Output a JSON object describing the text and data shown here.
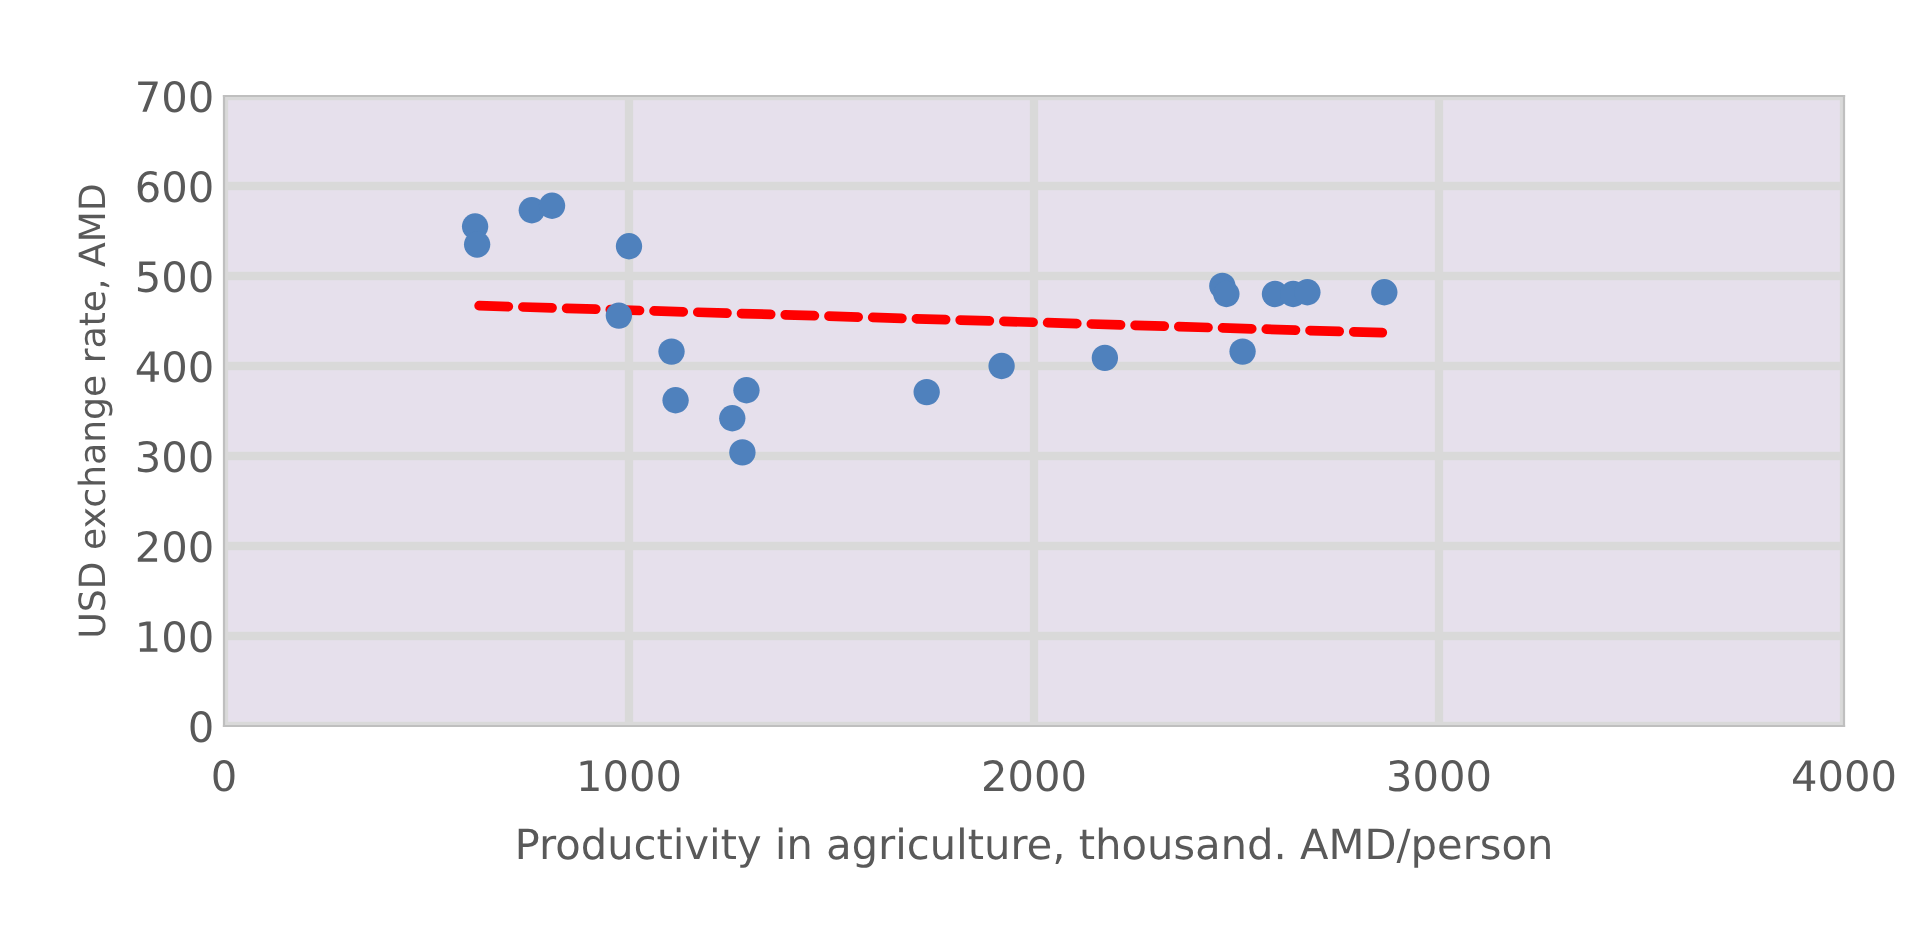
{
  "chart_data": {
    "type": "scatter",
    "xlabel": "Productivity in agriculture, thousand. AMD/person",
    "ylabel": "USD exchange rate, AMD",
    "series": [
      {
        "color": "#4f81bd",
        "marker": "circle",
        "x": [
          620,
          625,
          760,
          810,
          1000,
          975,
          1105,
          1115,
          1255,
          1290,
          1280,
          1735,
          1920,
          2175,
          2465,
          2475,
          2515,
          2595,
          2640,
          2675,
          2865
        ],
        "values": [
          555,
          535,
          573,
          578,
          533,
          456,
          416,
          362,
          342,
          373,
          304,
          371,
          400,
          409,
          489,
          480,
          416,
          480,
          480,
          482,
          482
        ]
      },
      {
        "type": "line",
        "color": "#ff0000",
        "line_style": "dashed",
        "x": [
          630,
          2860
        ],
        "values": [
          467,
          437
        ]
      }
    ],
    "xlim": [
      0,
      4000
    ],
    "xticks": [
      0,
      1000,
      2000,
      3000,
      4000
    ],
    "ylim": [
      0,
      700
    ],
    "yticks": [
      0,
      100,
      200,
      300,
      400,
      500,
      600,
      700
    ],
    "grid": true
  }
}
